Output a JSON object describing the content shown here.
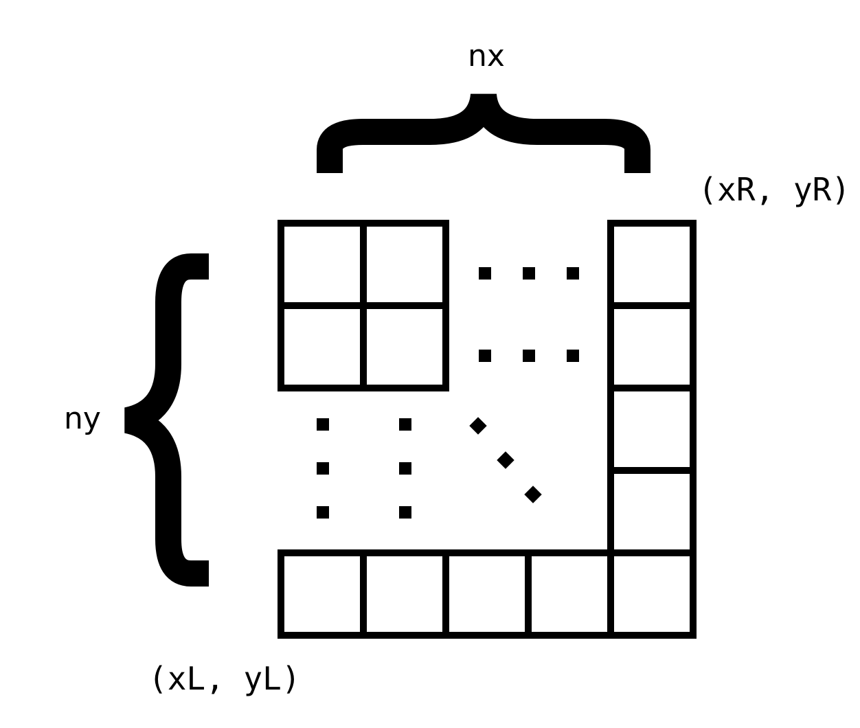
{
  "labels": {
    "nx": "nx",
    "ny": "ny",
    "top_right_corner": "(xR, yR)",
    "bottom_left_corner": "(xL, yL)"
  },
  "colors": {
    "foreground": "#000000",
    "background": "#ffffff"
  }
}
